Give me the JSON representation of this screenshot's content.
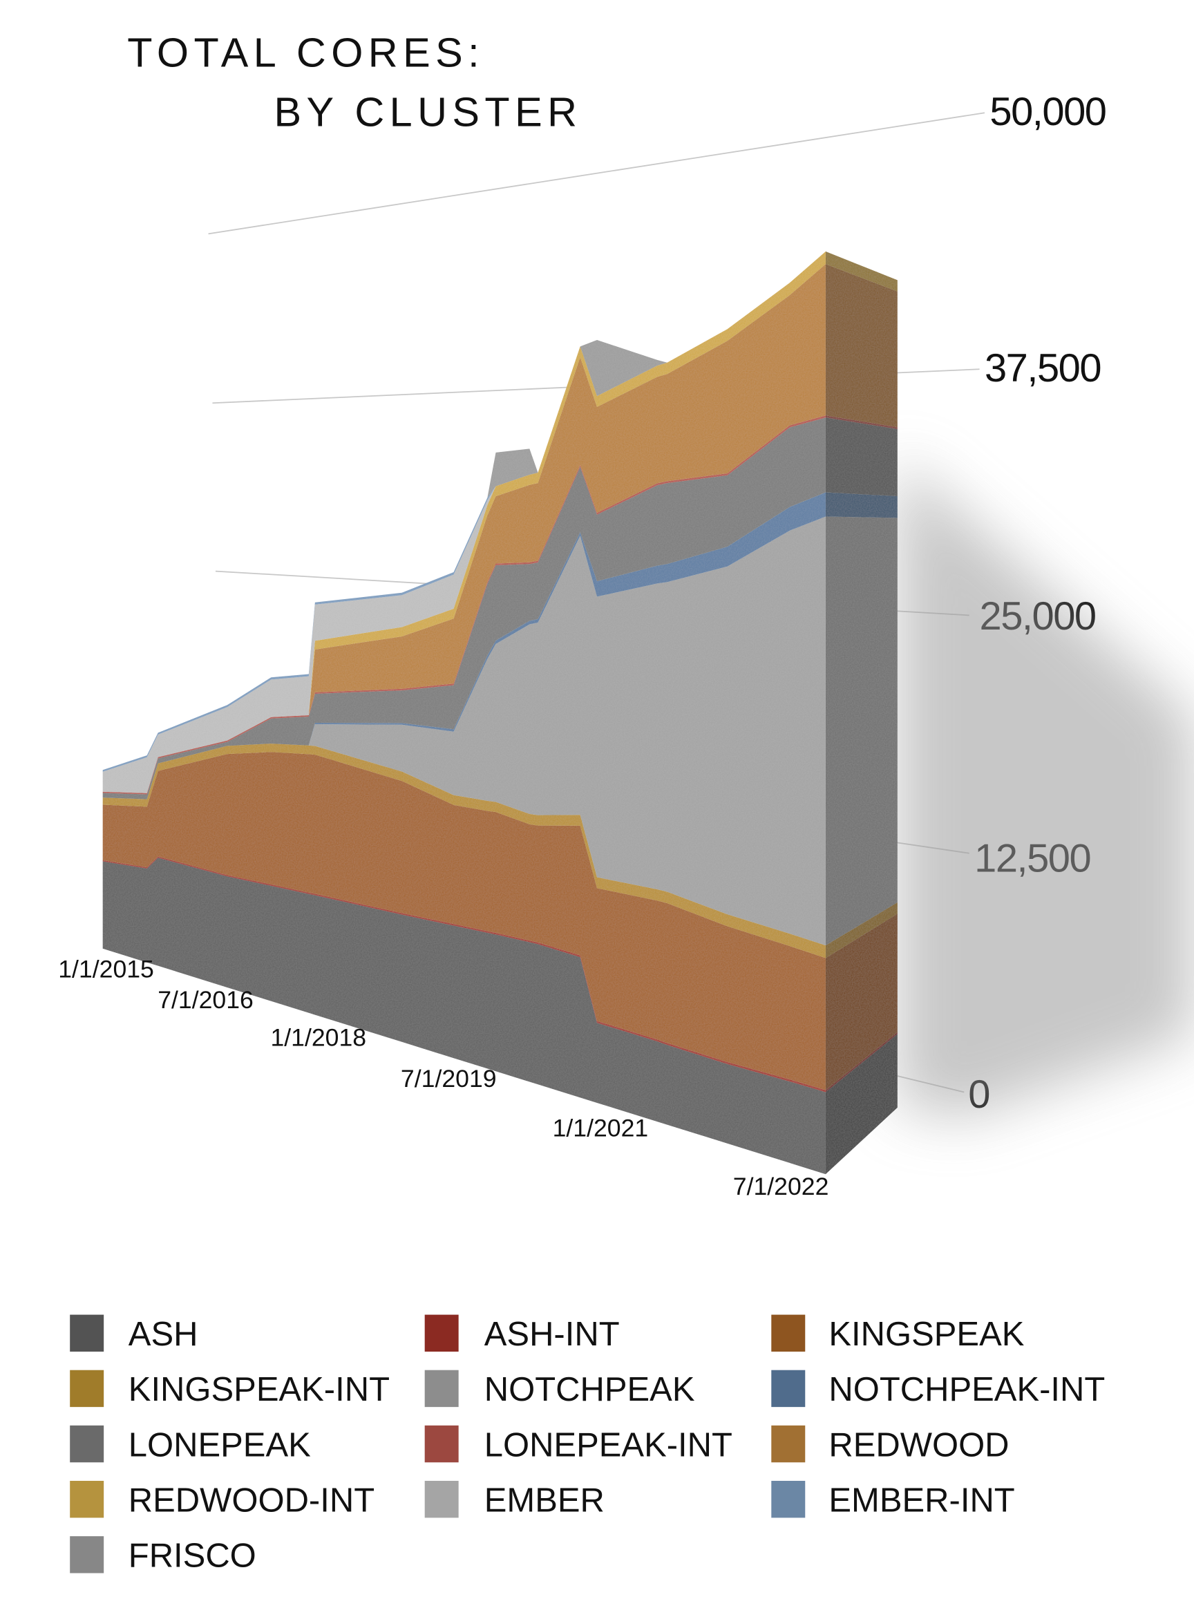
{
  "chart_data": {
    "type": "area",
    "stacked": true,
    "style": "3d",
    "title": "TOTAL CORES:",
    "subtitle": "BY CLUSTER",
    "xlabel": "",
    "ylabel": "",
    "ylim": [
      0,
      50000
    ],
    "grid": true,
    "legend_position": "bottom",
    "y_ticks": [
      "0",
      "12,500",
      "25,000",
      "37,500",
      "50,000"
    ],
    "x_ticks": [
      "1/1/2015",
      "7/1/2016",
      "1/1/2018",
      "7/1/2019",
      "1/1/2021",
      "7/1/2022"
    ],
    "x": [
      "2015-01",
      "2015-09",
      "2015-11",
      "2016-11",
      "2017-06",
      "2017-12",
      "2018-01",
      "2019-01",
      "2019-08",
      "2019-12",
      "2020-01",
      "2020-05",
      "2020-06",
      "2020-11",
      "2021-01",
      "2021-07",
      "2021-08",
      "2022-02",
      "2022-08",
      "2022-11"
    ],
    "series": [
      {
        "name": "ASH",
        "color": "#535353",
        "values": [
          7400,
          7600,
          8650,
          8300,
          8270,
          8240,
          8240,
          8150,
          8140,
          8130,
          8130,
          8090,
          8080,
          7850,
          4420,
          4250,
          4200,
          4020,
          3960,
          3900
        ]
      },
      {
        "name": "ASH-INT",
        "color": "#8b2a22",
        "values": [
          100,
          100,
          100,
          100,
          100,
          100,
          100,
          100,
          100,
          100,
          100,
          100,
          100,
          100,
          100,
          100,
          100,
          100,
          100,
          100
        ]
      },
      {
        "name": "KINGSPEAK",
        "color": "#8e5520",
        "values": [
          4700,
          4900,
          6850,
          9050,
          9500,
          9600,
          9600,
          8470,
          7320,
          7200,
          7190,
          6740,
          6740,
          7250,
          7340,
          7360,
          7360,
          6870,
          6490,
          6280
        ]
      },
      {
        "name": "KINGSPEAK-INT",
        "color": "#a07c2a",
        "values": [
          600,
          600,
          600,
          600,
          600,
          600,
          600,
          600,
          600,
          600,
          600,
          600,
          600,
          600,
          600,
          600,
          600,
          600,
          600,
          600
        ]
      },
      {
        "name": "NOTCHPEAK",
        "color": "#8d8d8d",
        "values": [
          0,
          0,
          0,
          0,
          0,
          0,
          1500,
          3000,
          3900,
          8500,
          9400,
          11000,
          11100,
          15600,
          15500,
          16200,
          16300,
          17600,
          19600,
          20400
        ]
      },
      {
        "name": "NOTCHPEAK-INT",
        "color": "#506c8c",
        "values": [
          0,
          0,
          0,
          0,
          0,
          0,
          100,
          100,
          150,
          200,
          200,
          200,
          200,
          200,
          850,
          950,
          950,
          1000,
          1150,
          1150
        ]
      },
      {
        "name": "LONEPEAK",
        "color": "#6a6a6a",
        "values": [
          400,
          400,
          400,
          300,
          1800,
          2000,
          2000,
          2100,
          2700,
          4300,
          4480,
          3300,
          3260,
          3660,
          3680,
          4260,
          4260,
          3610,
          3870,
          3560
        ]
      },
      {
        "name": "LONEPEAK-INT",
        "color": "#9c4840",
        "values": [
          100,
          100,
          100,
          100,
          100,
          100,
          100,
          100,
          100,
          100,
          100,
          100,
          100,
          100,
          100,
          100,
          100,
          100,
          100,
          100
        ]
      },
      {
        "name": "REDWOOD",
        "color": "#a17033",
        "values": [
          0,
          0,
          0,
          0,
          0,
          0,
          2950,
          3350,
          4000,
          4000,
          4000,
          4480,
          4480,
          6030,
          5850,
          5640,
          5640,
          6700,
          6330,
          7200
        ]
      },
      {
        "name": "REDWOOD-INT",
        "color": "#b5933e",
        "values": [
          0,
          0,
          0,
          0,
          0,
          0,
          600,
          600,
          600,
          600,
          600,
          600,
          600,
          600,
          600,
          600,
          600,
          600,
          600,
          600
        ]
      },
      {
        "name": "EMBER",
        "color": "#a5a5a5",
        "values": [
          1700,
          2900,
          1800,
          2500,
          2700,
          2700,
          2500,
          2050,
          2100,
          300,
          0,
          0,
          0,
          0,
          0,
          0,
          0,
          0,
          0,
          0
        ]
      },
      {
        "name": "EMBER-INT",
        "color": "#6b87a5",
        "values": [
          150,
          150,
          150,
          150,
          150,
          150,
          150,
          150,
          150,
          150,
          0,
          0,
          0,
          0,
          0,
          0,
          0,
          0,
          0,
          0
        ]
      },
      {
        "name": "FRISCO",
        "color": "#878787",
        "values": [
          0,
          0,
          0,
          0,
          0,
          0,
          0,
          0,
          0,
          0,
          2000,
          1500,
          0,
          0,
          3100,
          300,
          0,
          0,
          0,
          0
        ]
      }
    ]
  }
}
